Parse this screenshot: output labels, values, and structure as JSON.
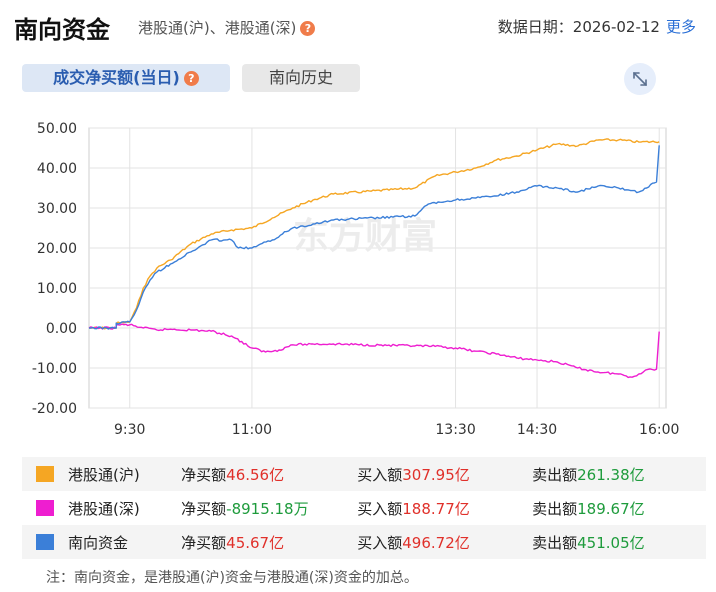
{
  "header": {
    "title": "南向资金",
    "subtitle": "港股通(沪)、港股通(深)",
    "date_label": "数据日期：2026-02-12",
    "more": "更多"
  },
  "tabs": {
    "active": "成交净买额(当日)",
    "inactive": "南向历史"
  },
  "help_mark": "?",
  "watermark": "东方财富",
  "legend": [
    {
      "name": "港股通(沪)",
      "color": "#f5a623",
      "net_label": "净买额",
      "net_value": "46.56亿",
      "net_color": "red",
      "buy_label": "买入额",
      "buy_value": "307.95亿",
      "sell_label": "卖出额",
      "sell_value": "261.38亿"
    },
    {
      "name": "港股通(深)",
      "color": "#ee1ed0",
      "net_label": "净买额",
      "net_value": "-8915.18万",
      "net_color": "green",
      "buy_label": "买入额",
      "buy_value": "188.77亿",
      "sell_label": "卖出额",
      "sell_value": "189.67亿"
    },
    {
      "name": "南向资金",
      "color": "#3b7fd8",
      "net_label": "净买额",
      "net_value": "45.67亿",
      "net_color": "red",
      "buy_label": "买入额",
      "buy_value": "496.72亿",
      "sell_label": "卖出额",
      "sell_value": "451.05亿"
    }
  ],
  "note": "注：南向资金，是港股通(沪)资金与港股通(深)资金的加总。",
  "chart_data": {
    "type": "line",
    "title": "",
    "xlabel": "",
    "ylabel": "",
    "ylim": [
      -20,
      50
    ],
    "y_ticks": [
      "50.00",
      "40.00",
      "30.00",
      "20.00",
      "10.00",
      "0.00",
      "-10.00",
      "-20.00"
    ],
    "x_ticks": [
      {
        "label": "9:30",
        "t": "09:30"
      },
      {
        "label": "11:00",
        "t": "11:00"
      },
      {
        "label": "13:30",
        "t": "13:30"
      },
      {
        "label": "14:30",
        "t": "14:30"
      },
      {
        "label": "16:00",
        "t": "16:00"
      }
    ],
    "grid": true,
    "series": [
      {
        "name": "港股通(沪)",
        "color": "#f5a623",
        "points": [
          [
            "09:00",
            0
          ],
          [
            "09:20",
            0
          ],
          [
            "09:20",
            1.2
          ],
          [
            "09:30",
            1.5
          ],
          [
            "09:35",
            5
          ],
          [
            "09:40",
            10
          ],
          [
            "09:45",
            13
          ],
          [
            "09:50",
            15
          ],
          [
            "10:00",
            17
          ],
          [
            "10:15",
            21
          ],
          [
            "10:30",
            23.5
          ],
          [
            "10:45",
            24.5
          ],
          [
            "11:00",
            25
          ],
          [
            "11:15",
            27.5
          ],
          [
            "11:30",
            30
          ],
          [
            "11:45",
            32
          ],
          [
            "12:00",
            33.5
          ],
          [
            "13:00",
            35
          ],
          [
            "13:15",
            38
          ],
          [
            "13:30",
            39
          ],
          [
            "13:45",
            40
          ],
          [
            "14:00",
            42
          ],
          [
            "14:15",
            43
          ],
          [
            "14:30",
            44.5
          ],
          [
            "14:45",
            46
          ],
          [
            "15:00",
            45.5
          ],
          [
            "15:15",
            47
          ],
          [
            "15:30",
            47
          ],
          [
            "15:45",
            46.5
          ],
          [
            "16:00",
            46.56
          ]
        ]
      },
      {
        "name": "港股通(深)",
        "color": "#ee1ed0",
        "points": [
          [
            "09:00",
            0
          ],
          [
            "09:20",
            0
          ],
          [
            "09:20",
            0.8
          ],
          [
            "09:30",
            0.8
          ],
          [
            "09:40",
            0
          ],
          [
            "09:50",
            -0.5
          ],
          [
            "10:00",
            -0.3
          ],
          [
            "10:15",
            -0.5
          ],
          [
            "10:30",
            -0.8
          ],
          [
            "10:45",
            -2
          ],
          [
            "11:00",
            -5
          ],
          [
            "11:10",
            -6
          ],
          [
            "11:20",
            -5.5
          ],
          [
            "11:30",
            -4.2
          ],
          [
            "11:45",
            -4
          ],
          [
            "12:00",
            -4
          ],
          [
            "13:00",
            -4.5
          ],
          [
            "13:15",
            -4.6
          ],
          [
            "13:30",
            -5
          ],
          [
            "13:45",
            -5.8
          ],
          [
            "14:00",
            -6.5
          ],
          [
            "14:15",
            -7.5
          ],
          [
            "14:30",
            -8
          ],
          [
            "14:45",
            -8.5
          ],
          [
            "15:00",
            -10
          ],
          [
            "15:15",
            -11
          ],
          [
            "15:30",
            -11.5
          ],
          [
            "15:40",
            -12.3
          ],
          [
            "15:45",
            -11.5
          ],
          [
            "15:50",
            -10.5
          ],
          [
            "15:58",
            -10.3
          ],
          [
            "16:00",
            -0.89
          ]
        ]
      },
      {
        "name": "南向资金",
        "color": "#3b7fd8",
        "points": [
          [
            "09:00",
            0
          ],
          [
            "09:20",
            0
          ],
          [
            "09:20",
            1.2
          ],
          [
            "09:30",
            1.5
          ],
          [
            "09:35",
            4.5
          ],
          [
            "09:40",
            9
          ],
          [
            "09:45",
            12
          ],
          [
            "09:50",
            14
          ],
          [
            "10:00",
            16
          ],
          [
            "10:15",
            19
          ],
          [
            "10:30",
            22
          ],
          [
            "10:45",
            22
          ],
          [
            "10:50",
            20
          ],
          [
            "11:00",
            20
          ],
          [
            "11:15",
            22
          ],
          [
            "11:30",
            25
          ],
          [
            "11:45",
            26
          ],
          [
            "12:00",
            27
          ],
          [
            "13:00",
            28
          ],
          [
            "13:10",
            31
          ],
          [
            "13:30",
            32
          ],
          [
            "13:45",
            32.5
          ],
          [
            "14:00",
            33
          ],
          [
            "14:15",
            34
          ],
          [
            "14:30",
            35.5
          ],
          [
            "14:45",
            35
          ],
          [
            "15:00",
            34
          ],
          [
            "15:15",
            35.5
          ],
          [
            "15:30",
            35
          ],
          [
            "15:45",
            34
          ],
          [
            "15:58",
            36.5
          ],
          [
            "16:00",
            45.67
          ]
        ]
      }
    ]
  }
}
